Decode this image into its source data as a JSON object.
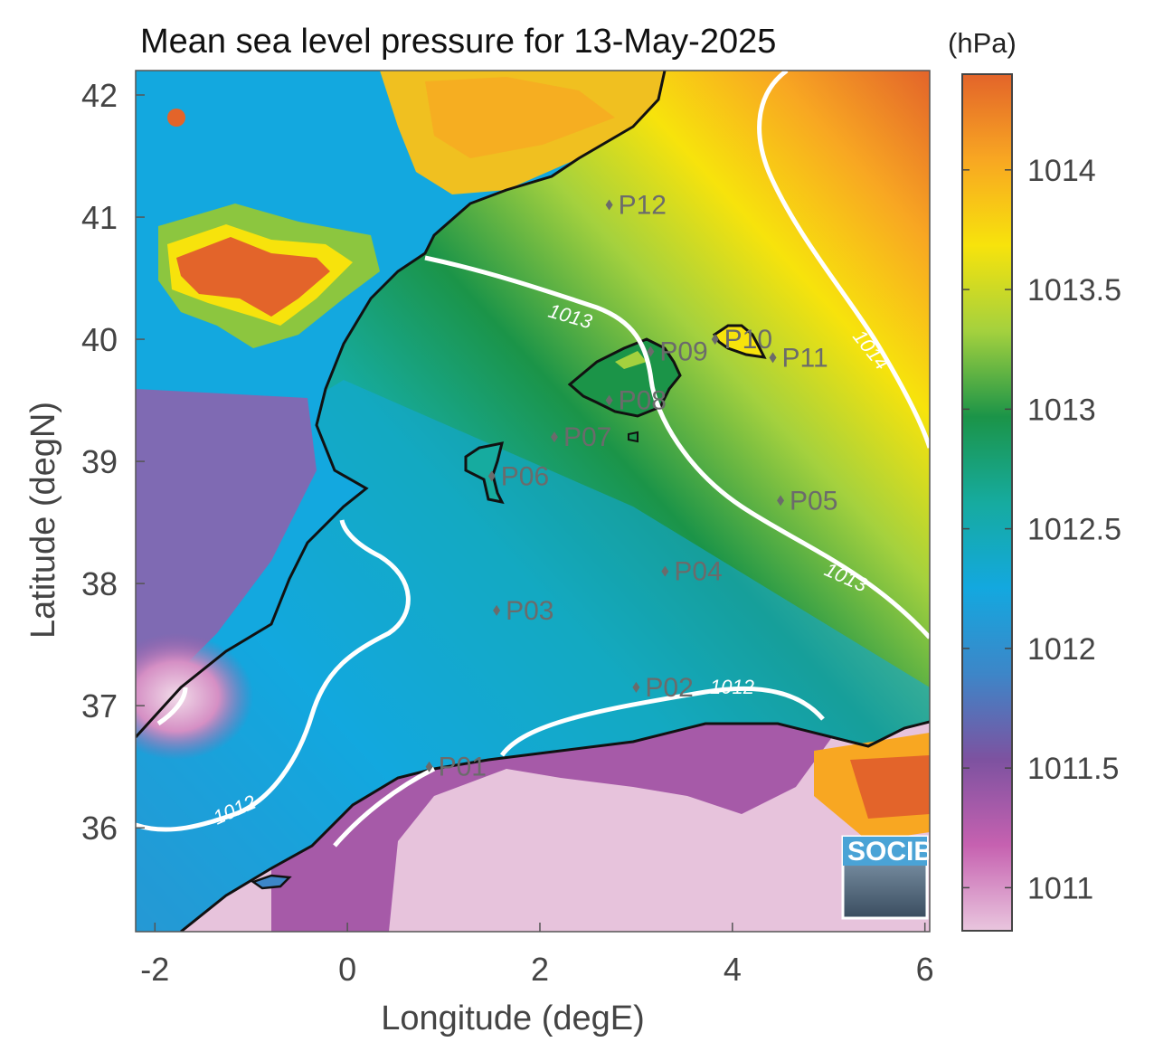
{
  "title": "Mean sea level pressure for 13-May-2025",
  "x_axis": {
    "label": "Longitude (degE)",
    "ticks": [
      "-2",
      "0",
      "2",
      "4",
      "6"
    ],
    "range": [
      -2.2,
      6.05
    ]
  },
  "y_axis": {
    "label": "Latitude (degN)",
    "ticks": [
      "36",
      "37",
      "38",
      "39",
      "40",
      "41",
      "42"
    ],
    "range": [
      35.15,
      42.2
    ]
  },
  "colorbar": {
    "unit": "(hPa)",
    "ticks": [
      "1011",
      "1011.5",
      "1012",
      "1012.5",
      "1013",
      "1013.5",
      "1014"
    ],
    "range": [
      1010.82,
      1014.4
    ],
    "colormap": [
      "#e9c6de",
      "#c661b0",
      "#7d52a0",
      "#3d86c8",
      "#13a8df",
      "#16ab9f",
      "#1b9448",
      "#a4d13e",
      "#f7e30c",
      "#f8a722",
      "#e3642a"
    ]
  },
  "contours": [
    {
      "label": "1012",
      "level": 1012
    },
    {
      "label": "1013",
      "level": 1013
    },
    {
      "label": "1014",
      "level": 1014
    }
  ],
  "stations": [
    {
      "id": "P01",
      "lon": 0.85,
      "lat": 36.5
    },
    {
      "id": "P02",
      "lon": 3.0,
      "lat": 37.15
    },
    {
      "id": "P03",
      "lon": 1.55,
      "lat": 37.78
    },
    {
      "id": "P04",
      "lon": 3.3,
      "lat": 38.1
    },
    {
      "id": "P05",
      "lon": 4.5,
      "lat": 38.68
    },
    {
      "id": "P06",
      "lon": 1.5,
      "lat": 38.88
    },
    {
      "id": "P07",
      "lon": 2.15,
      "lat": 39.2
    },
    {
      "id": "P08",
      "lon": 2.72,
      "lat": 39.5
    },
    {
      "id": "P09",
      "lon": 3.15,
      "lat": 39.9
    },
    {
      "id": "P10",
      "lon": 3.82,
      "lat": 40.0
    },
    {
      "id": "P11",
      "lon": 4.42,
      "lat": 39.85
    },
    {
      "id": "P12",
      "lon": 2.72,
      "lat": 41.1
    }
  ],
  "logo": {
    "text": "SOCIB"
  }
}
